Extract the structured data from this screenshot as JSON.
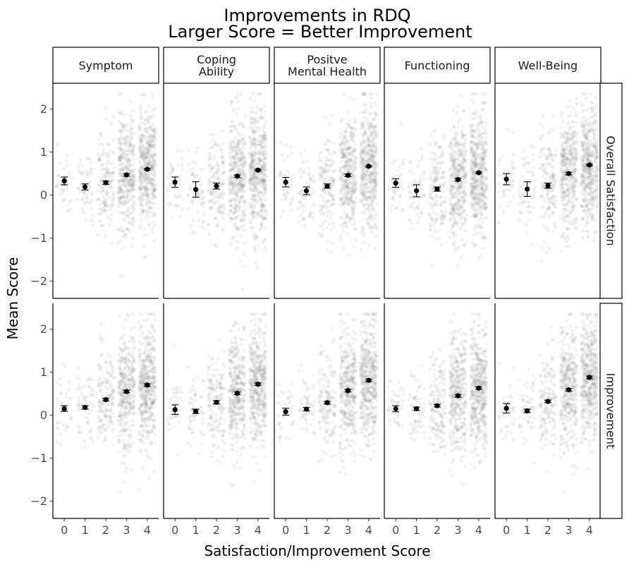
{
  "chart_data": {
    "type": "scatter",
    "title": "Improvements in RDQ",
    "subtitle": "Larger Score = Better Improvement",
    "xlabel": "Satisfaction/Improvement Score",
    "ylabel": "Mean Score",
    "x_ticks": [
      "0",
      "1",
      "2",
      "3",
      "4"
    ],
    "y_ticks": [
      "2",
      "1",
      "0",
      "−1",
      "−2"
    ],
    "ylim": [
      -2.4,
      2.6
    ],
    "columns": [
      "Symptom",
      "Coping\nAbility",
      "Positve\nMental Health",
      "Functioning",
      "Well-Being"
    ],
    "rows": [
      "Overall Satisfaction",
      "Improvement"
    ],
    "panels": [
      {
        "row": "Overall Satisfaction",
        "column": "Symptom",
        "series": [
          {
            "x": 0,
            "mean": 0.33,
            "lo": 0.24,
            "hi": 0.42
          },
          {
            "x": 1,
            "mean": 0.19,
            "lo": 0.12,
            "hi": 0.26
          },
          {
            "x": 2,
            "mean": 0.29,
            "lo": 0.25,
            "hi": 0.33
          },
          {
            "x": 3,
            "mean": 0.47,
            "lo": 0.44,
            "hi": 0.5
          },
          {
            "x": 4,
            "mean": 0.6,
            "lo": 0.58,
            "hi": 0.62
          }
        ]
      },
      {
        "row": "Overall Satisfaction",
        "column": "Coping\nAbility",
        "series": [
          {
            "x": 0,
            "mean": 0.3,
            "lo": 0.18,
            "hi": 0.42
          },
          {
            "x": 1,
            "mean": 0.13,
            "lo": -0.05,
            "hi": 0.31
          },
          {
            "x": 2,
            "mean": 0.21,
            "lo": 0.14,
            "hi": 0.28
          },
          {
            "x": 3,
            "mean": 0.44,
            "lo": 0.41,
            "hi": 0.47
          },
          {
            "x": 4,
            "mean": 0.58,
            "lo": 0.56,
            "hi": 0.6
          }
        ]
      },
      {
        "row": "Overall Satisfaction",
        "column": "Positve\nMental Health",
        "series": [
          {
            "x": 0,
            "mean": 0.3,
            "lo": 0.19,
            "hi": 0.41
          },
          {
            "x": 1,
            "mean": 0.1,
            "lo": 0.01,
            "hi": 0.19
          },
          {
            "x": 2,
            "mean": 0.21,
            "lo": 0.16,
            "hi": 0.26
          },
          {
            "x": 3,
            "mean": 0.46,
            "lo": 0.43,
            "hi": 0.49
          },
          {
            "x": 4,
            "mean": 0.67,
            "lo": 0.65,
            "hi": 0.69
          }
        ]
      },
      {
        "row": "Overall Satisfaction",
        "column": "Functioning",
        "series": [
          {
            "x": 0,
            "mean": 0.28,
            "lo": 0.18,
            "hi": 0.38
          },
          {
            "x": 1,
            "mean": 0.1,
            "lo": -0.04,
            "hi": 0.24
          },
          {
            "x": 2,
            "mean": 0.14,
            "lo": 0.09,
            "hi": 0.19
          },
          {
            "x": 3,
            "mean": 0.36,
            "lo": 0.33,
            "hi": 0.39
          },
          {
            "x": 4,
            "mean": 0.52,
            "lo": 0.5,
            "hi": 0.54
          }
        ]
      },
      {
        "row": "Overall Satisfaction",
        "column": "Well-Being",
        "series": [
          {
            "x": 0,
            "mean": 0.37,
            "lo": 0.24,
            "hi": 0.5
          },
          {
            "x": 1,
            "mean": 0.14,
            "lo": -0.03,
            "hi": 0.31
          },
          {
            "x": 2,
            "mean": 0.22,
            "lo": 0.16,
            "hi": 0.28
          },
          {
            "x": 3,
            "mean": 0.5,
            "lo": 0.47,
            "hi": 0.53
          },
          {
            "x": 4,
            "mean": 0.7,
            "lo": 0.68,
            "hi": 0.72
          }
        ]
      },
      {
        "row": "Improvement",
        "column": "Symptom",
        "series": [
          {
            "x": 0,
            "mean": 0.15,
            "lo": 0.09,
            "hi": 0.22
          },
          {
            "x": 1,
            "mean": 0.18,
            "lo": 0.14,
            "hi": 0.22
          },
          {
            "x": 2,
            "mean": 0.36,
            "lo": 0.33,
            "hi": 0.39
          },
          {
            "x": 3,
            "mean": 0.55,
            "lo": 0.52,
            "hi": 0.58
          },
          {
            "x": 4,
            "mean": 0.7,
            "lo": 0.67,
            "hi": 0.73
          }
        ]
      },
      {
        "row": "Improvement",
        "column": "Coping\nAbility",
        "series": [
          {
            "x": 0,
            "mean": 0.13,
            "lo": 0.02,
            "hi": 0.24
          },
          {
            "x": 1,
            "mean": 0.09,
            "lo": 0.04,
            "hi": 0.14
          },
          {
            "x": 2,
            "mean": 0.3,
            "lo": 0.26,
            "hi": 0.34
          },
          {
            "x": 3,
            "mean": 0.51,
            "lo": 0.48,
            "hi": 0.54
          },
          {
            "x": 4,
            "mean": 0.72,
            "lo": 0.69,
            "hi": 0.75
          }
        ]
      },
      {
        "row": "Improvement",
        "column": "Positve\nMental Health",
        "series": [
          {
            "x": 0,
            "mean": 0.08,
            "lo": 0.0,
            "hi": 0.16
          },
          {
            "x": 1,
            "mean": 0.14,
            "lo": 0.1,
            "hi": 0.18
          },
          {
            "x": 2,
            "mean": 0.29,
            "lo": 0.26,
            "hi": 0.32
          },
          {
            "x": 3,
            "mean": 0.57,
            "lo": 0.54,
            "hi": 0.6
          },
          {
            "x": 4,
            "mean": 0.81,
            "lo": 0.78,
            "hi": 0.84
          }
        ]
      },
      {
        "row": "Improvement",
        "column": "Functioning",
        "series": [
          {
            "x": 0,
            "mean": 0.15,
            "lo": 0.08,
            "hi": 0.22
          },
          {
            "x": 1,
            "mean": 0.15,
            "lo": 0.11,
            "hi": 0.19
          },
          {
            "x": 2,
            "mean": 0.22,
            "lo": 0.19,
            "hi": 0.25
          },
          {
            "x": 3,
            "mean": 0.45,
            "lo": 0.42,
            "hi": 0.48
          },
          {
            "x": 4,
            "mean": 0.63,
            "lo": 0.6,
            "hi": 0.66
          }
        ]
      },
      {
        "row": "Improvement",
        "column": "Well-Being",
        "series": [
          {
            "x": 0,
            "mean": 0.16,
            "lo": 0.05,
            "hi": 0.27
          },
          {
            "x": 1,
            "mean": 0.1,
            "lo": 0.06,
            "hi": 0.14
          },
          {
            "x": 2,
            "mean": 0.32,
            "lo": 0.29,
            "hi": 0.35
          },
          {
            "x": 3,
            "mean": 0.59,
            "lo": 0.56,
            "hi": 0.62
          },
          {
            "x": 4,
            "mean": 0.88,
            "lo": 0.85,
            "hi": 0.91
          }
        ]
      }
    ],
    "grid": false,
    "legend": "none",
    "point_color": "#000000",
    "jitter_color": "#7f7f7f"
  }
}
